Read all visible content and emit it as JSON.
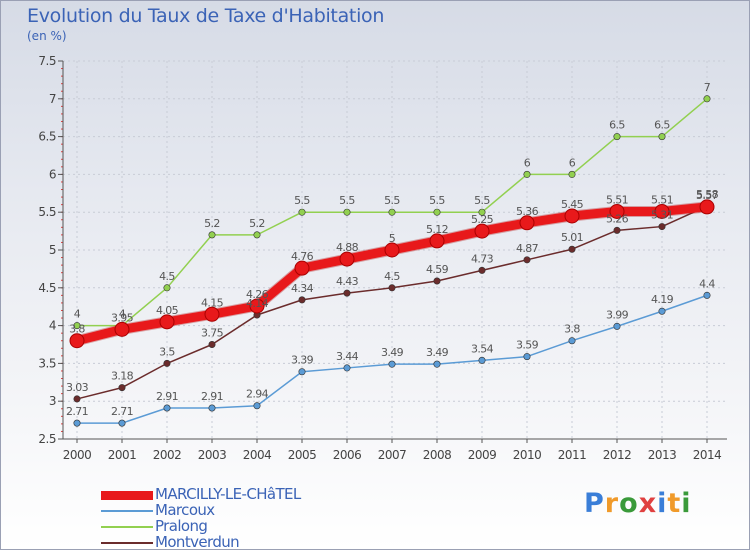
{
  "header": {
    "title": "Evolution du Taux de Taxe d'Habitation",
    "unit": "(en %)"
  },
  "logo": {
    "text": "Proxiti",
    "letters": [
      "P",
      "r",
      "o",
      "x",
      "i",
      "t",
      "i"
    ],
    "colors": [
      "#3a7ed8",
      "#f09a2a",
      "#3a9a3a",
      "#e04040",
      "#3a7ed8",
      "#f09a2a",
      "#3a9a3a"
    ]
  },
  "chart_data": {
    "type": "line",
    "title": "Evolution du Taux de Taxe d'Habitation",
    "ylabel": "(en %)",
    "x": [
      "2000",
      "2001",
      "2002",
      "2003",
      "2004",
      "2005",
      "2006",
      "2007",
      "2008",
      "2009",
      "2010",
      "2011",
      "2012",
      "2013",
      "2014"
    ],
    "ylim": [
      2.5,
      7.5
    ],
    "yticks": [
      "2.5",
      "3",
      "3.5",
      "4",
      "4.5",
      "5",
      "5.5",
      "6",
      "6.5",
      "7",
      "7.5"
    ],
    "grid": true,
    "legend_position": "bottom-left",
    "series": [
      {
        "name": "MARCILLY-LE-CHâTEL",
        "color": "#e8191b",
        "width": 9,
        "values": [
          3.8,
          3.95,
          4.05,
          4.15,
          4.26,
          4.76,
          4.88,
          5,
          5.12,
          5.25,
          5.36,
          5.45,
          5.51,
          5.51,
          5.57
        ],
        "labels": [
          "3.8",
          "3.95",
          "4.05",
          "4.15",
          "4.26",
          "4.76",
          "4.88",
          "5",
          "5.12",
          "5.25",
          "5.36",
          "5.45",
          "5.51",
          "5.51",
          "5.57"
        ]
      },
      {
        "name": "Marcoux",
        "color": "#5b9bd5",
        "width": 1.5,
        "values": [
          2.71,
          2.71,
          2.91,
          2.91,
          2.94,
          3.39,
          3.44,
          3.49,
          3.49,
          3.54,
          3.59,
          3.8,
          3.99,
          4.19,
          4.4
        ],
        "labels": [
          "2.71",
          "2.71",
          "2.91",
          "2.91",
          "2.94",
          "3.39",
          "3.44",
          "3.49",
          "3.49",
          "3.54",
          "3.59",
          "3.8",
          "3.99",
          "4.19",
          "4.4"
        ]
      },
      {
        "name": "Pralong",
        "color": "#92d050",
        "width": 1.5,
        "values": [
          4,
          4,
          4.5,
          5.2,
          5.2,
          5.5,
          5.5,
          5.5,
          5.5,
          5.5,
          6,
          6,
          6.5,
          6.5,
          7
        ],
        "labels": [
          "4",
          "4",
          "4.5",
          "5.2",
          "5.2",
          "5.5",
          "5.5",
          "5.5",
          "5.5",
          "5.5",
          "6",
          "6",
          "6.5",
          "6.5",
          "7"
        ]
      },
      {
        "name": "Montverdun",
        "color": "#6b2c2c",
        "width": 1.5,
        "values": [
          3.03,
          3.18,
          3.5,
          3.75,
          4.14,
          4.34,
          4.43,
          4.5,
          4.59,
          4.73,
          4.87,
          5.01,
          5.26,
          5.31,
          5.58
        ],
        "labels": [
          "3.03",
          "3.18",
          "3.5",
          "3.75",
          "4.14",
          "4.34",
          "4.43",
          "4.5",
          "4.59",
          "4.73",
          "4.87",
          "5.01",
          "5.26",
          "5.31",
          "5.58"
        ]
      }
    ]
  }
}
